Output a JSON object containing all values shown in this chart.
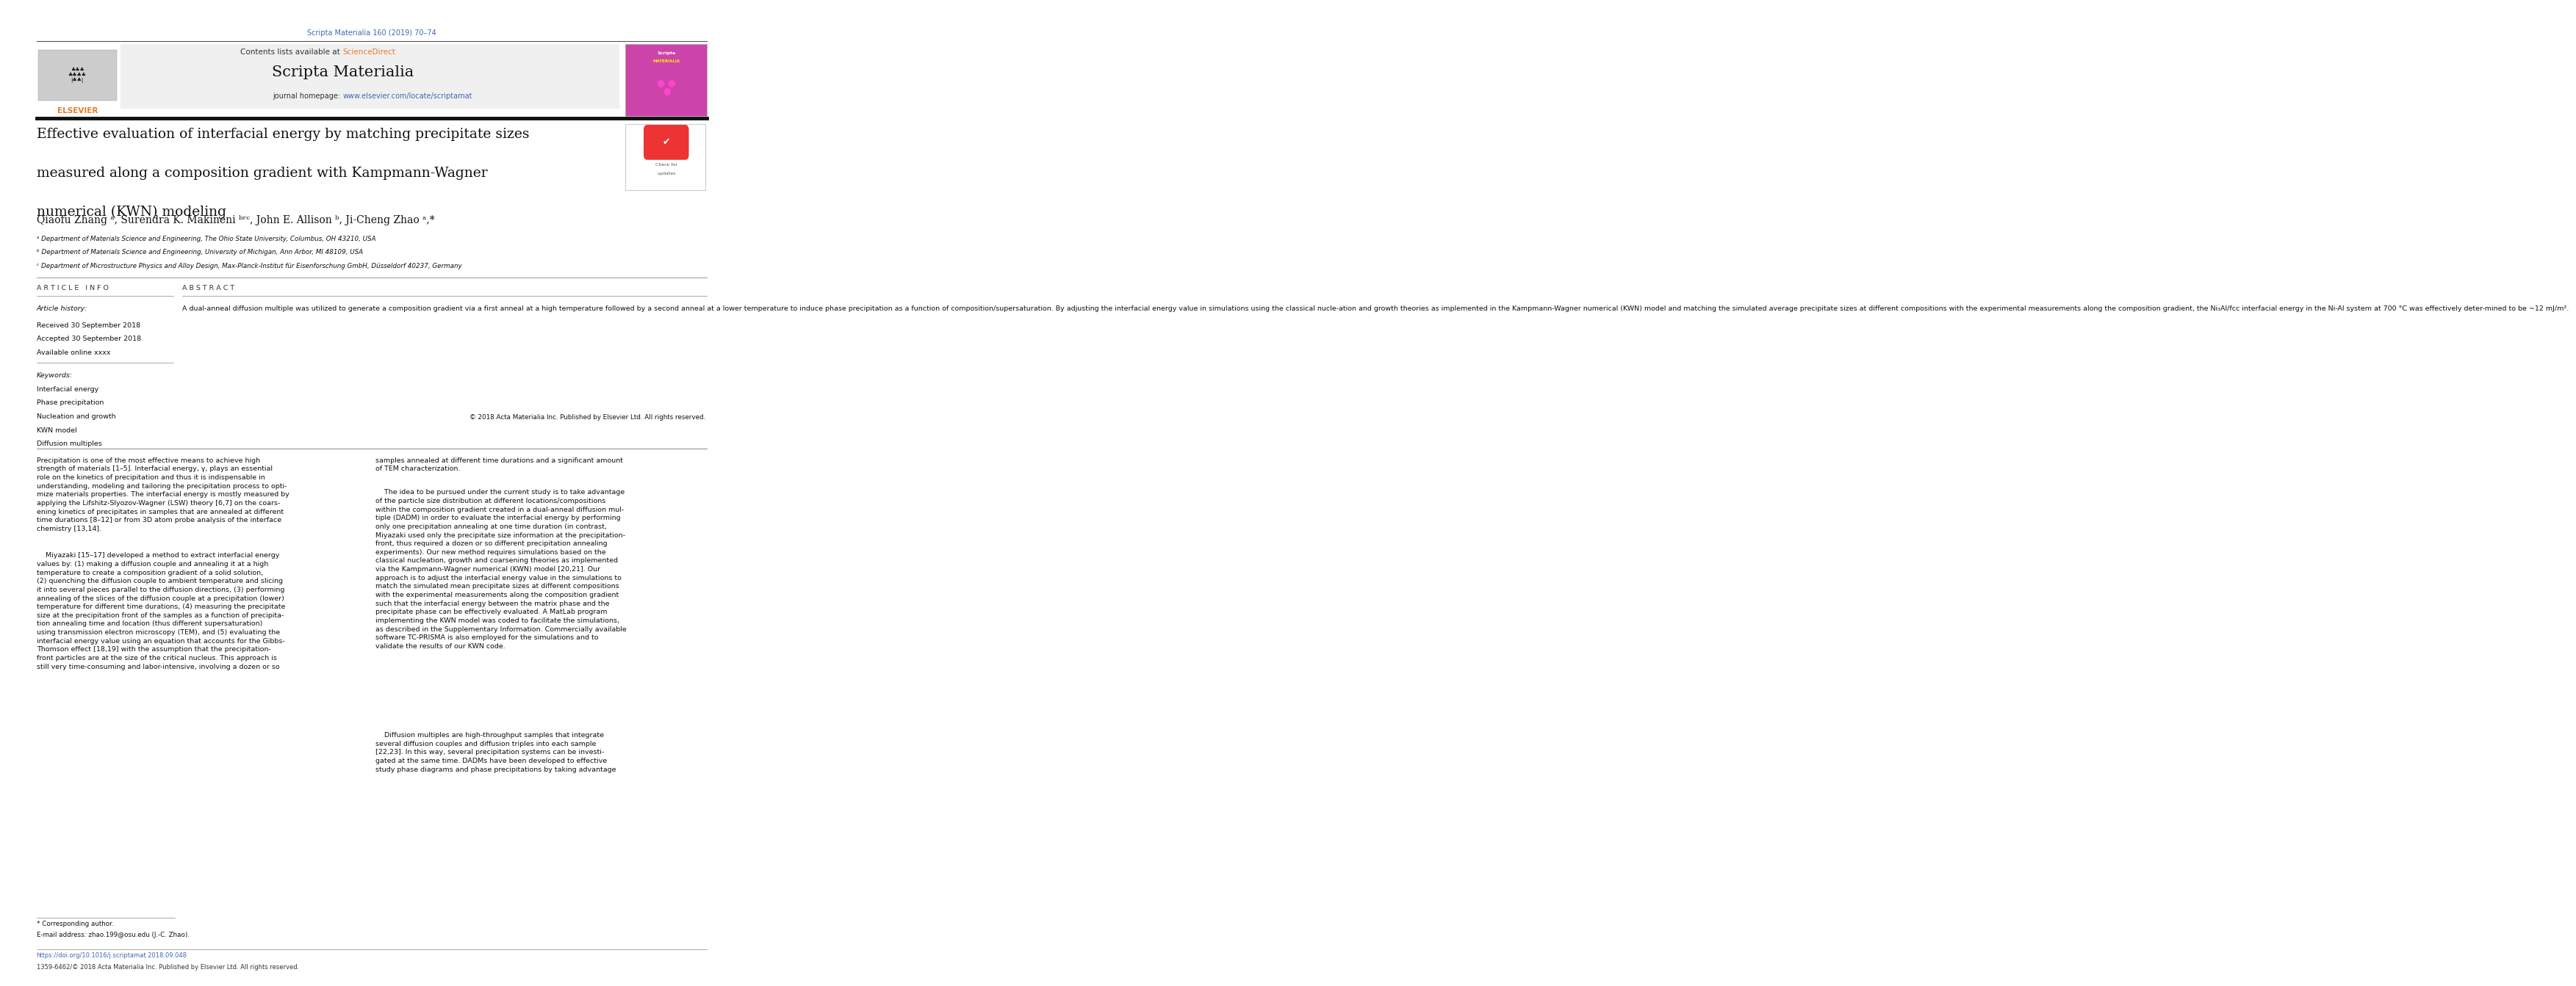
{
  "page_width": 9.92,
  "page_height": 13.23,
  "bg_color": "#ffffff",
  "top_journal_ref": "Scripta Materialia 160 (2019) 70–74",
  "top_journal_ref_color": "#4169b0",
  "journal_name": "Scripta Materialia",
  "contents_line": "Contents lists available at",
  "science_direct": "ScienceDirect",
  "science_direct_color": "#e87b2b",
  "journal_homepage_label": "journal homepage:",
  "journal_homepage_url": "www.elsevier.com/locate/scriptamat",
  "journal_homepage_url_color": "#4169b0",
  "header_bg": "#f0f0f0",
  "title_line1": "Effective evaluation of interfacial energy by matching precipitate sizes",
  "title_line2": "measured along a composition gradient with Kampmann-Wagner",
  "title_line3": "numerical (KWN) modeling",
  "authors": "Qiaofu Zhang ᵃ, Surendra K. Makineni ᵇʳᶜ, John E. Allison ᵇ, Ji-Cheng Zhao ᵃ,*",
  "affil_a": "ᵃ Department of Materials Science and Engineering, The Ohio State University, Columbus, OH 43210, USA",
  "affil_b": "ᵇ Department of Materials Science and Engineering, University of Michigan, Ann Arbor, MI 48109, USA",
  "affil_c": "ᶜ Department of Microstructure Physics and Alloy Design, Max-Planck-Institut für Eisenforschung GmbH, Düsseldorf 40237, Germany",
  "article_info_title": "A R T I C L E   I N F O",
  "article_history_title": "Article history:",
  "received": "Received 30 September 2018",
  "accepted": "Accepted 30 September 2018",
  "available": "Available online xxxx",
  "keywords_title": "Keywords:",
  "keywords": [
    "Interfacial energy",
    "Phase precipitation",
    "Nucleation and growth",
    "KWN model",
    "Diffusion multiples"
  ],
  "abstract_title": "A B S T R A C T",
  "abstract_text": "A dual-anneal diffusion multiple was utilized to generate a composition gradient via a first anneal at a high temperature followed by a second anneal at a lower temperature to induce phase precipitation as a function of composition/supersaturation. By adjusting the interfacial energy value in simulations using the classical nucle-ation and growth theories as implemented in the Kampmann-Wagner numerical (KWN) model and matching the simulated average precipitate sizes at different compositions with the experimental measurements along the composition gradient, the Ni₃Al/fcc interfacial energy in the Ni-Al system at 700 °C was effectively deter-mined to be ~12 mJ/m².",
  "copyright": "© 2018 Acta Materialia Inc. Published by Elsevier Ltd. All rights reserved.",
  "doi_line": "https://doi.org/10.1016/j.scriptamat.2018.09.048",
  "issn_line": "1359-6462/© 2018 Acta Materialia Inc. Published by Elsevier Ltd. All rights reserved.",
  "body_col1_p1": "Precipitation is one of the most effective means to achieve high\nstrength of materials [1–5]. Interfacial energy, γ, plays an essential\nrole on the kinetics of precipitation and thus it is indispensable in\nunderstanding, modeling and tailoring the precipitation process to opti-\nmize materials properties. The interfacial energy is mostly measured by\napplying the Lifshitz-Slyozov-Wagner (LSW) theory [6,7] on the coars-\nening kinetics of precipitates in samples that are annealed at different\ntime durations [8–12] or from 3D atom probe analysis of the interface\nchemistry [13,14].",
  "body_col1_p2": "    Miyazaki [15–17] developed a method to extract interfacial energy\nvalues by: (1) making a diffusion couple and annealing it at a high\ntemperature to create a composition gradient of a solid solution,\n(2) quenching the diffusion couple to ambient temperature and slicing\nit into several pieces parallel to the diffusion directions, (3) performing\nannealing of the slices of the diffusion couple at a precipitation (lower)\ntemperature for different time durations, (4) measuring the precipitate\nsize at the precipitation front of the samples as a function of precipita-\ntion annealing time and location (thus different supersaturation)\nusing transmission electron microscopy (TEM), and (5) evaluating the\ninterfacial energy value using an equation that accounts for the Gibbs-\nThomson effect [18,19] with the assumption that the precipitation-\nfront particles are at the size of the critical nucleus. This approach is\nstill very time-consuming and labor-intensive, involving a dozen or so",
  "body_col2_p1": "samples annealed at different time durations and a significant amount\nof TEM characterization.",
  "body_col2_p2": "    The idea to be pursued under the current study is to take advantage\nof the particle size distribution at different locations/compositions\nwithin the composition gradient created in a dual-anneal diffusion mul-\ntiple (DADM) in order to evaluate the interfacial energy by performing\nonly one precipitation annealing at one time duration (in contrast,\nMiyazaki used only the precipitate size information at the precipitation-\nfront, thus required a dozen or so different precipitation annealing\nexperiments). Our new method requires simulations based on the\nclassical nucleation, growth and coarsening theories as implemented\nvia the Kampmann-Wagner numerical (KWN) model [20,21]. Our\napproach is to adjust the interfacial energy value in the simulations to\nmatch the simulated mean precipitate sizes at different compositions\nwith the experimental measurements along the composition gradient\nsuch that the interfacial energy between the matrix phase and the\nprecipitate phase can be effectively evaluated. A MatLab program\nimplementing the KWN model was coded to facilitate the simulations,\nas described in the Supplementary Information. Commercially available\nsoftware TC-PRISMA is also employed for the simulations and to\nvalidate the results of our KWN code.",
  "body_col2_p3": "    Diffusion multiples are high-throughput samples that integrate\nseveral diffusion couples and diffusion triples into each sample\n[22,23]. In this way, several precipitation systems can be investi-\ngated at the same time. DADMs have been developed to effective\nstudy phase diagrams and phase precipitations by taking advantage",
  "footnote_corresp": "* Corresponding author.",
  "footnote_email": "E-mail address: zhao.199@osu.edu (J.-C. Zhao).",
  "link_color": "#4169b0"
}
